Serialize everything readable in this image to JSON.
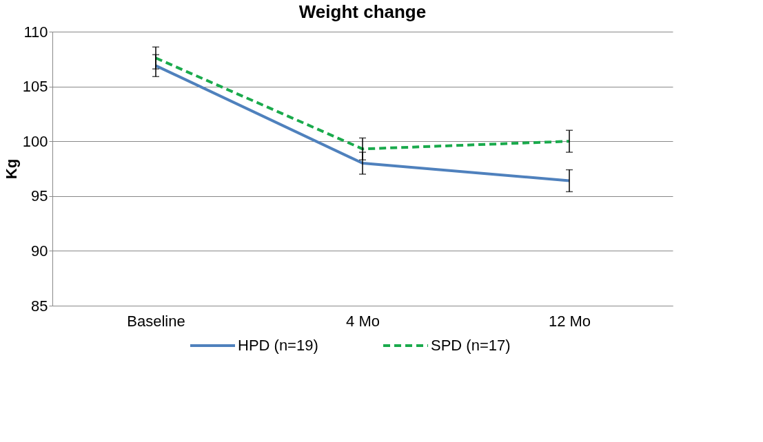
{
  "chart_data": {
    "type": "line",
    "title": "Weight change",
    "ylabel": "Kg",
    "categories": [
      "Baseline",
      "4 Mo",
      "12 Mo"
    ],
    "series": [
      {
        "name": "HPD (n=19)",
        "color": "#4f81bd",
        "line_style": "solid",
        "values": [
          106.9,
          98.0,
          96.4
        ],
        "errors": [
          1.0,
          1.0,
          1.0
        ]
      },
      {
        "name": "SPD (n=17)",
        "color": "#1aaa4c",
        "line_style": "dashed",
        "values": [
          107.6,
          99.3,
          100.0
        ],
        "errors": [
          1.0,
          1.0,
          1.0
        ]
      }
    ],
    "ylim": [
      85,
      110
    ],
    "yticks": [
      85,
      90,
      95,
      100,
      105,
      110
    ],
    "grid": "y",
    "legend": "bottom",
    "marker": "none"
  }
}
